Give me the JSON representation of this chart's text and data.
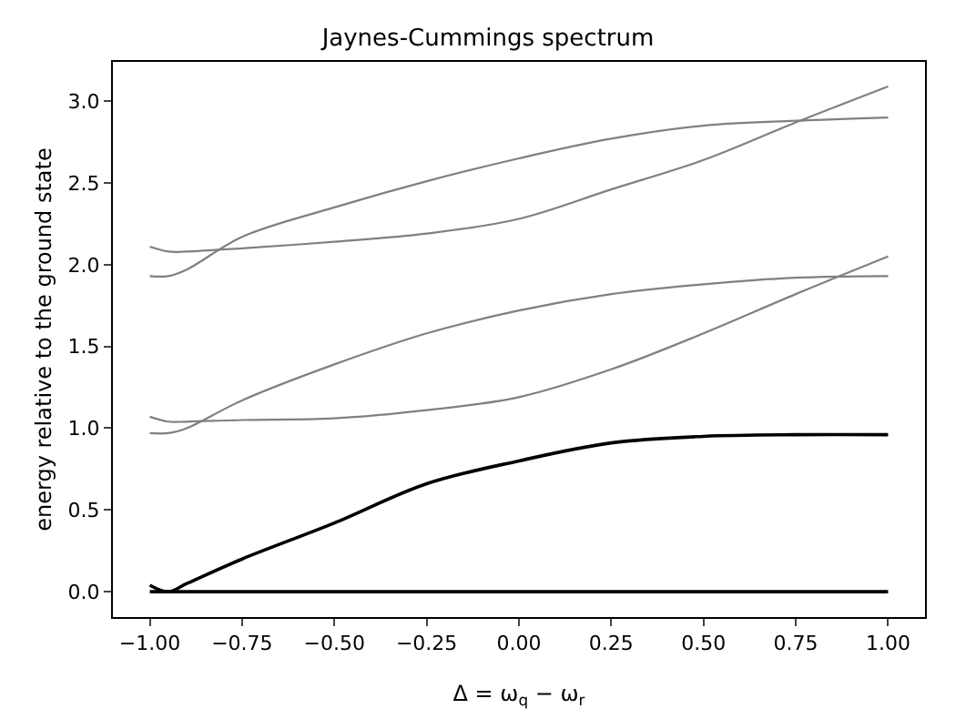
{
  "chart_data": {
    "type": "line",
    "title": "Jaynes-Cummings spectrum",
    "xlabel": "Δ = ω$_{q}$ − ω$_{r}$",
    "ylabel": "energy relative to the ground state",
    "x": [
      -1,
      -0.95,
      -0.9,
      -0.75,
      -0.5,
      -0.25,
      0,
      0.25,
      0.5,
      0.75,
      1
    ],
    "series": [
      {
        "color": "#000000",
        "values": [
          0,
          0,
          0,
          0,
          0,
          0,
          0,
          0,
          0,
          0,
          0
        ]
      },
      {
        "color": "#000000",
        "values": [
          0.04,
          0.0,
          0.05,
          0.2,
          0.42,
          0.66,
          0.8,
          0.91,
          0.95,
          0.96,
          0.96
        ]
      },
      {
        "color": "#808080",
        "values": [
          0.97,
          0.97,
          1.0,
          1.17,
          1.39,
          1.58,
          1.72,
          1.82,
          1.88,
          1.92,
          1.93
        ]
      },
      {
        "color": "#808080",
        "values": [
          1.07,
          1.04,
          1.04,
          1.05,
          1.06,
          1.11,
          1.19,
          1.36,
          1.58,
          1.82,
          2.05
        ]
      },
      {
        "color": "#808080",
        "values": [
          1.93,
          1.93,
          1.97,
          2.17,
          2.35,
          2.51,
          2.65,
          2.77,
          2.85,
          2.88,
          2.9
        ]
      },
      {
        "color": "#808080",
        "values": [
          2.11,
          2.08,
          2.08,
          2.1,
          2.14,
          2.19,
          2.28,
          2.46,
          2.64,
          2.87,
          3.09
        ]
      }
    ],
    "xlim": [
      -1.1,
      1.1
    ],
    "xticks": [
      {
        "value": -1,
        "label": "−1.00"
      },
      {
        "value": -0.75,
        "label": "−0.75"
      },
      {
        "value": -0.5,
        "label": "−0.50"
      },
      {
        "value": -0.25,
        "label": "−0.25"
      },
      {
        "value": 0,
        "label": "0.00"
      },
      {
        "value": 0.25,
        "label": "0.25"
      },
      {
        "value": 0.5,
        "label": "0.50"
      },
      {
        "value": 0.75,
        "label": "0.75"
      },
      {
        "value": 1,
        "label": "1.00"
      }
    ],
    "ylim": [
      -0.155,
      3.24
    ],
    "yticks": [
      {
        "value": 0,
        "label": "0.0"
      },
      {
        "value": 0.5,
        "label": "0.5"
      },
      {
        "value": 1,
        "label": "1.0"
      },
      {
        "value": 1.5,
        "label": "1.5"
      },
      {
        "value": 2,
        "label": "2.0"
      },
      {
        "value": 2.5,
        "label": "2.5"
      },
      {
        "value": 3,
        "label": "3.0"
      }
    ],
    "grid": false,
    "marker": "none",
    "line_style": "solid"
  }
}
